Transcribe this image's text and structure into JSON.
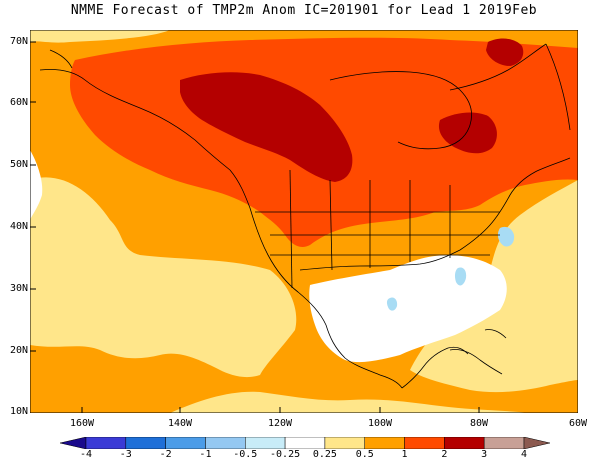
{
  "title": "NMME Forecast of TMP2m Anom IC=201901 for Lead 1 2019Feb",
  "map": {
    "lat_labels": [
      "70N",
      "60N",
      "50N",
      "40N",
      "30N",
      "20N",
      "10N"
    ],
    "lon_labels": [
      "160W",
      "140W",
      "120W",
      "100W",
      "80W",
      "60W"
    ]
  },
  "colorbar": {
    "labels": [
      "-4",
      "-3",
      "-2",
      "-1",
      "-0.5",
      "-0.25",
      "0.25",
      "0.5",
      "1",
      "2",
      "3",
      "4"
    ],
    "colors": [
      "#1a0a8c",
      "#3a3ad6",
      "#1e6fd8",
      "#4b9ce8",
      "#94c8f2",
      "#c8ecf8",
      "#ffffff",
      "#ffe68a",
      "#ffa000",
      "#ff4a00",
      "#b40000",
      "#c8a096",
      "#8c5a50"
    ]
  },
  "anomaly_colors": {
    "neutral": "#ffffff",
    "pale_yellow": "#ffe68a",
    "orange": "#ffa000",
    "red_orange": "#ff4a00",
    "dark_red": "#b40000",
    "light_blue": "#a8dcf4"
  }
}
